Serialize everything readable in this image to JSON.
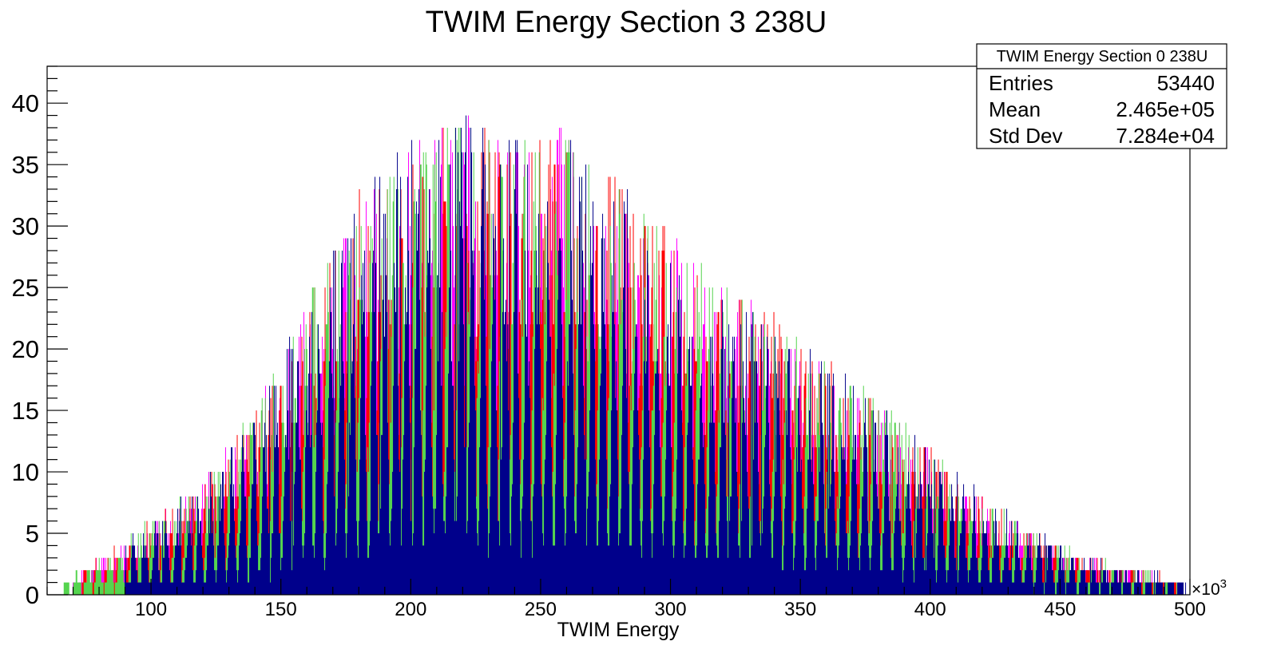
{
  "chart_data": {
    "type": "bar",
    "title": "TWIM Energy Section 3 238U",
    "xlabel": "TWIM Energy",
    "ylabel": "",
    "x_multiplier_label": "×10",
    "x_multiplier_exponent": "3",
    "xlim": [
      60,
      500
    ],
    "ylim": [
      0,
      43
    ],
    "x_ticks": [
      100,
      150,
      200,
      250,
      300,
      350,
      400,
      450,
      500
    ],
    "y_ticks": [
      0,
      5,
      10,
      15,
      20,
      25,
      30,
      35,
      40
    ],
    "grid": false,
    "legend": "none",
    "stats_box": {
      "title": "TWIM Energy Section 0 238U",
      "placement": "top-right",
      "rows": [
        {
          "label": "Entries",
          "value": "53440"
        },
        {
          "label": "Mean",
          "value": "2.465e+05"
        },
        {
          "label": "Std Dev",
          "value": "7.284e+04"
        }
      ]
    },
    "envelope": {
      "x": [
        65,
        80,
        100,
        120,
        140,
        160,
        180,
        200,
        220,
        240,
        260,
        280,
        300,
        320,
        340,
        360,
        380,
        400,
        420,
        440,
        460,
        480,
        500
      ],
      "y": [
        1,
        3,
        6,
        9,
        15,
        24,
        33,
        37,
        39,
        38,
        38,
        34,
        30,
        25,
        23,
        19,
        16,
        12,
        8,
        5,
        3,
        2,
        1
      ]
    },
    "series": [
      {
        "color": "#ff00ff",
        "x_range": [
          70,
          495
        ],
        "spacing": 4.2,
        "offset": 0.0
      },
      {
        "color": "#ff0000",
        "x_range": [
          72,
          495
        ],
        "spacing": 4.2,
        "offset": 1.05
      },
      {
        "color": "#55d44f",
        "x_range": [
          65,
          495
        ],
        "spacing": 4.2,
        "offset": 2.1
      },
      {
        "color": "#00008b",
        "x_range": [
          90,
          500
        ],
        "spacing": 4.2,
        "offset": 3.15
      }
    ]
  }
}
